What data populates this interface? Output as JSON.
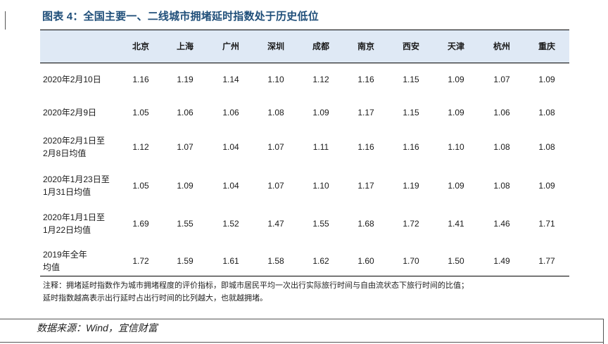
{
  "title": "图表 4：全国主要一、二线城市拥堵延时指数处于历史低位",
  "cities": [
    "北京",
    "上海",
    "广州",
    "深圳",
    "成都",
    "南京",
    "西安",
    "天津",
    "杭州",
    "重庆"
  ],
  "rows": [
    {
      "label_lines": [
        "2020年2月10日"
      ],
      "values": [
        "1.16",
        "1.19",
        "1.14",
        "1.10",
        "1.12",
        "1.16",
        "1.15",
        "1.09",
        "1.07",
        "1.09"
      ]
    },
    {
      "label_lines": [
        "2020年2月9日"
      ],
      "values": [
        "1.05",
        "1.06",
        "1.06",
        "1.08",
        "1.09",
        "1.17",
        "1.15",
        "1.09",
        "1.06",
        "1.08"
      ]
    },
    {
      "label_lines": [
        "2020年2月1日至",
        "2月8日均值"
      ],
      "values": [
        "1.12",
        "1.07",
        "1.04",
        "1.07",
        "1.11",
        "1.16",
        "1.16",
        "1.10",
        "1.08",
        "1.08"
      ]
    },
    {
      "label_lines": [
        "2020年1月23日至",
        "1月31日均值"
      ],
      "values": [
        "1.05",
        "1.09",
        "1.04",
        "1.07",
        "1.10",
        "1.17",
        "1.19",
        "1.09",
        "1.08",
        "1.09"
      ]
    },
    {
      "label_lines": [
        "2020年1月1日至",
        "1月22日均值"
      ],
      "values": [
        "1.69",
        "1.55",
        "1.52",
        "1.47",
        "1.55",
        "1.68",
        "1.72",
        "1.41",
        "1.46",
        "1.71"
      ]
    },
    {
      "label_lines": [
        "2019年全年",
        "均值"
      ],
      "values": [
        "1.72",
        "1.59",
        "1.61",
        "1.58",
        "1.62",
        "1.60",
        "1.70",
        "1.50",
        "1.49",
        "1.77"
      ]
    }
  ],
  "note_lines": [
    "注释：拥堵延时指数作为城市拥堵程度的评价指标，即城市居民平均一次出行实际旅行时间与自由流状态下旅行时间的比值；",
    "延时指数越高表示出行延时占出行时间的比列越大，也就越拥堵。"
  ],
  "source": "数据来源：Wind，宜信财富"
}
